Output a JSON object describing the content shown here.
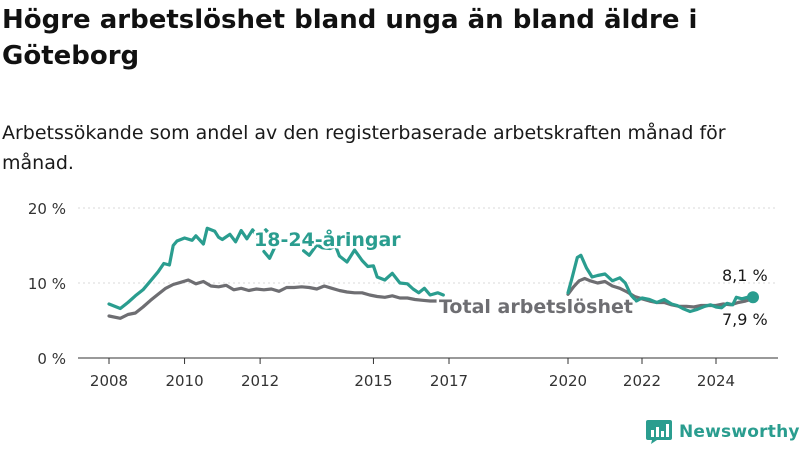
{
  "title": "Högre arbetslöshet bland unga än bland äldre i Göteborg",
  "subtitle": "Arbetssökande som andel av den registerbaserade arbetskraften månad för månad.",
  "brand": {
    "name": "Newsworthy",
    "logo_icon": "bar-chart-icon",
    "color": "#2a9d8f"
  },
  "chart_data": {
    "type": "line",
    "ylim": [
      0,
      20
    ],
    "yticks": [
      0,
      10,
      20
    ],
    "ytick_labels": [
      "0 %",
      "10 %",
      "20 %"
    ],
    "xlim": [
      2008,
      2026
    ],
    "xticks": [
      2008,
      2010,
      2012,
      2015,
      2017,
      2020,
      2022,
      2024
    ],
    "xtick_labels": [
      "2008",
      "2010",
      "2012",
      "2015",
      "2017",
      "2020",
      "2022",
      "2024"
    ],
    "grid": true,
    "series": [
      {
        "name": "18-24-åringar",
        "color": "#2a9d8f",
        "segments": [
          [
            [
              2008.0,
              7.2
            ],
            [
              2008.3,
              6.6
            ],
            [
              2008.5,
              7.4
            ],
            [
              2008.7,
              8.3
            ],
            [
              2008.9,
              9.1
            ],
            [
              2009.1,
              10.3
            ],
            [
              2009.3,
              11.5
            ],
            [
              2009.45,
              12.6
            ],
            [
              2009.6,
              12.4
            ],
            [
              2009.7,
              15.0
            ],
            [
              2009.8,
              15.6
            ],
            [
              2010.0,
              16.0
            ],
            [
              2010.2,
              15.7
            ],
            [
              2010.3,
              16.3
            ],
            [
              2010.5,
              15.2
            ],
            [
              2010.6,
              17.3
            ],
            [
              2010.8,
              16.9
            ],
            [
              2010.9,
              16.1
            ],
            [
              2011.0,
              15.8
            ],
            [
              2011.2,
              16.5
            ],
            [
              2011.35,
              15.5
            ],
            [
              2011.5,
              17.0
            ],
            [
              2011.65,
              15.9
            ],
            [
              2011.8,
              17.1
            ],
            [
              2011.95,
              16.0
            ],
            [
              2012.15,
              17.1
            ],
            [
              2012.3,
              16.3
            ]
          ],
          [
            [
              2012.1,
              14.2
            ],
            [
              2012.25,
              13.3
            ],
            [
              2012.4,
              14.9
            ]
          ],
          [
            [
              2013.15,
              14.3
            ],
            [
              2013.3,
              13.7
            ],
            [
              2013.5,
              15.1
            ],
            [
              2013.65,
              14.7
            ],
            [
              2013.85,
              14.6
            ],
            [
              2014.0,
              14.9
            ],
            [
              2014.1,
              13.6
            ],
            [
              2014.3,
              12.8
            ],
            [
              2014.5,
              14.4
            ],
            [
              2014.7,
              13.0
            ],
            [
              2014.85,
              12.2
            ],
            [
              2015.0,
              12.3
            ],
            [
              2015.1,
              10.8
            ],
            [
              2015.3,
              10.4
            ],
            [
              2015.5,
              11.3
            ],
            [
              2015.7,
              10.0
            ],
            [
              2015.9,
              9.9
            ],
            [
              2016.05,
              9.2
            ],
            [
              2016.2,
              8.7
            ],
            [
              2016.35,
              9.3
            ],
            [
              2016.5,
              8.4
            ],
            [
              2016.7,
              8.7
            ],
            [
              2016.85,
              8.4
            ]
          ],
          [
            [
              2020.0,
              8.7
            ],
            [
              2020.1,
              10.5
            ],
            [
              2020.25,
              13.4
            ],
            [
              2020.35,
              13.7
            ],
            [
              2020.5,
              12.0
            ],
            [
              2020.65,
              10.8
            ],
            [
              2020.8,
              11.0
            ],
            [
              2021.0,
              11.2
            ],
            [
              2021.2,
              10.3
            ],
            [
              2021.4,
              10.7
            ],
            [
              2021.55,
              10.0
            ],
            [
              2021.7,
              8.4
            ],
            [
              2021.85,
              7.6
            ],
            [
              2022.0,
              8.0
            ],
            [
              2022.2,
              7.8
            ],
            [
              2022.4,
              7.4
            ],
            [
              2022.6,
              7.8
            ],
            [
              2022.8,
              7.2
            ],
            [
              2022.95,
              7.0
            ],
            [
              2023.1,
              6.6
            ],
            [
              2023.3,
              6.2
            ],
            [
              2023.5,
              6.5
            ],
            [
              2023.7,
              6.9
            ],
            [
              2023.85,
              7.1
            ],
            [
              2024.0,
              6.8
            ],
            [
              2024.15,
              6.7
            ],
            [
              2024.3,
              7.3
            ],
            [
              2024.45,
              7.1
            ],
            [
              2024.55,
              8.1
            ],
            [
              2024.7,
              7.9
            ],
            [
              2024.85,
              8.1
            ],
            [
              2025.0,
              8.1
            ]
          ]
        ]
      },
      {
        "name": "Total arbetslöshet",
        "color": "#6e6e72",
        "segments": [
          [
            [
              2008.0,
              5.6
            ],
            [
              2008.3,
              5.3
            ],
            [
              2008.5,
              5.8
            ],
            [
              2008.7,
              6.0
            ],
            [
              2008.9,
              6.8
            ],
            [
              2009.1,
              7.7
            ],
            [
              2009.3,
              8.5
            ],
            [
              2009.5,
              9.3
            ],
            [
              2009.7,
              9.8
            ],
            [
              2009.9,
              10.1
            ],
            [
              2010.1,
              10.4
            ],
            [
              2010.3,
              9.9
            ],
            [
              2010.5,
              10.2
            ],
            [
              2010.7,
              9.6
            ],
            [
              2010.9,
              9.5
            ],
            [
              2011.1,
              9.7
            ],
            [
              2011.3,
              9.1
            ],
            [
              2011.5,
              9.3
            ],
            [
              2011.7,
              9.0
            ],
            [
              2011.9,
              9.2
            ],
            [
              2012.1,
              9.1
            ],
            [
              2012.3,
              9.2
            ],
            [
              2012.5,
              8.9
            ],
            [
              2012.7,
              9.4
            ],
            [
              2012.9,
              9.4
            ],
            [
              2013.1,
              9.5
            ],
            [
              2013.3,
              9.4
            ],
            [
              2013.5,
              9.2
            ],
            [
              2013.7,
              9.6
            ],
            [
              2013.9,
              9.3
            ],
            [
              2014.1,
              9.0
            ],
            [
              2014.3,
              8.8
            ],
            [
              2014.5,
              8.7
            ],
            [
              2014.7,
              8.7
            ],
            [
              2014.9,
              8.4
            ],
            [
              2015.1,
              8.2
            ],
            [
              2015.3,
              8.1
            ],
            [
              2015.5,
              8.3
            ],
            [
              2015.7,
              8.0
            ],
            [
              2015.9,
              8.0
            ],
            [
              2016.1,
              7.8
            ],
            [
              2016.3,
              7.7
            ],
            [
              2016.5,
              7.6
            ],
            [
              2016.7,
              7.6
            ],
            [
              2016.85,
              7.7
            ]
          ],
          [
            [
              2020.0,
              8.5
            ],
            [
              2020.15,
              9.5
            ],
            [
              2020.3,
              10.3
            ],
            [
              2020.45,
              10.6
            ],
            [
              2020.6,
              10.3
            ],
            [
              2020.8,
              10.0
            ],
            [
              2021.0,
              10.2
            ],
            [
              2021.2,
              9.6
            ],
            [
              2021.4,
              9.3
            ],
            [
              2021.6,
              8.8
            ],
            [
              2021.8,
              8.2
            ],
            [
              2022.0,
              7.9
            ],
            [
              2022.2,
              7.6
            ],
            [
              2022.4,
              7.4
            ],
            [
              2022.6,
              7.4
            ],
            [
              2022.8,
              7.1
            ],
            [
              2023.0,
              6.9
            ],
            [
              2023.2,
              6.9
            ],
            [
              2023.4,
              6.8
            ],
            [
              2023.6,
              7.0
            ],
            [
              2023.8,
              7.0
            ],
            [
              2024.0,
              7.0
            ],
            [
              2024.2,
              7.2
            ],
            [
              2024.4,
              7.1
            ],
            [
              2024.6,
              7.4
            ],
            [
              2024.8,
              7.6
            ],
            [
              2025.0,
              7.9
            ]
          ]
        ]
      }
    ],
    "annotations": [
      {
        "text": "18-24-åringar",
        "series": 0
      },
      {
        "text": "Total arbetslöshet",
        "series": 1
      },
      {
        "text": "8,1 %",
        "series": 0
      },
      {
        "text": "7,9 %",
        "series": 1
      }
    ]
  }
}
